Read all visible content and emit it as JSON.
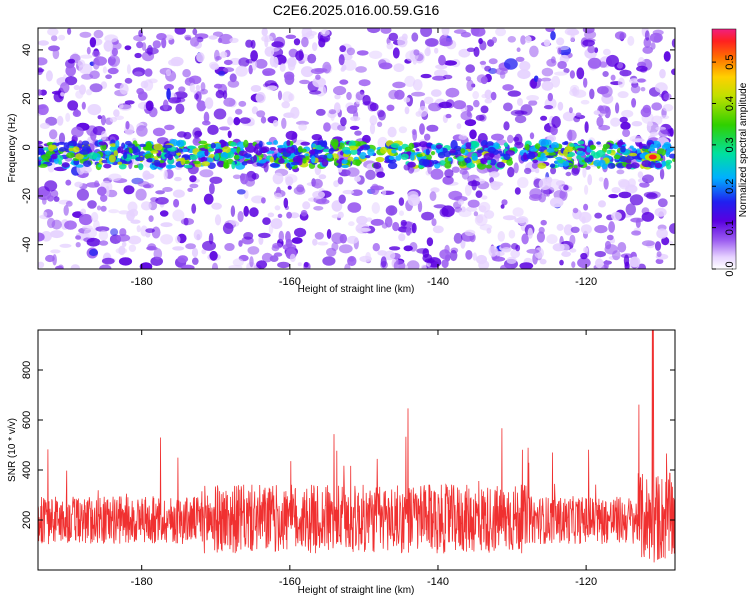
{
  "figure": {
    "title": "C2E6.2025.016.00.59.G16"
  },
  "chart_data": [
    {
      "type": "heatmap",
      "xlabel": "Height of straight line (km)",
      "ylabel": "Frequency (Hz)",
      "xlim": [
        -194,
        -108
      ],
      "ylim": [
        -50,
        49
      ],
      "x_ticks": [
        -180,
        -160,
        -140,
        -120
      ],
      "y_ticks": [
        -40,
        -20,
        0,
        20,
        40
      ],
      "band_center_hz": -3,
      "band_halfwidth_hz": 5,
      "band_peak": {
        "x": -111,
        "y": -4,
        "value": 0.55
      },
      "colorbar": {
        "label": "Normalized spectral amplitude",
        "range": [
          0.0,
          0.58
        ],
        "ticks": [
          0.0,
          0.1,
          0.2,
          0.3,
          0.4,
          0.5
        ]
      }
    },
    {
      "type": "line",
      "xlabel": "Height of straight line (km)",
      "ylabel": "SNR (10 * v/v)",
      "xlim": [
        -194,
        -108
      ],
      "ylim": [
        0,
        960
      ],
      "x_ticks": [
        -180,
        -160,
        -140,
        -120
      ],
      "y_ticks": [
        200,
        400,
        600,
        800
      ],
      "color": "#f03030",
      "baseline_median": 190,
      "max_spike": {
        "x": -111,
        "y": 960
      }
    }
  ]
}
